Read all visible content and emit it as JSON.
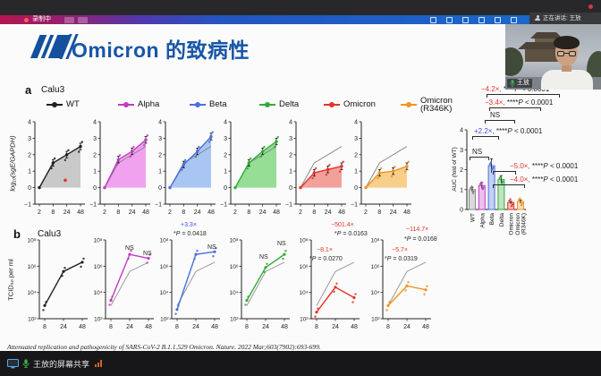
{
  "meeting": {
    "toolbar": {
      "recording_label": "录制中",
      "left_icons": [
        "record-dot",
        "pause",
        "stop"
      ],
      "right_icons": [
        "pen",
        "chat",
        "participants",
        "share-window",
        "layout",
        "leave"
      ],
      "speaking_label": "正在讲话: 王放"
    },
    "webcam": {
      "name_label": "王放"
    },
    "bottom_bar": {
      "share_label": "王放的屏幕共享"
    }
  },
  "slide": {
    "title": "Omicron 的致病性",
    "accent_color": "#1856a7",
    "panel_a_label": "a",
    "panel_b_label": "b",
    "citation": "Attenuated replication and pathogenicity of SARS-CoV-2 B.1.1.529 Omicron. Nature. 2022 Mar;603(7902):693-699."
  },
  "legend": {
    "items": [
      {
        "label": "WT",
        "color": "#231f20"
      },
      {
        "label": "Alpha",
        "color": "#c23bc2"
      },
      {
        "label": "Beta",
        "color": "#4a6fe0"
      },
      {
        "label": "Delta",
        "color": "#2fae37"
      },
      {
        "label": "Omicron",
        "color": "#e63329"
      },
      {
        "label": "Omicron (R346K)",
        "color": "#f09422"
      }
    ]
  },
  "chart_data": [
    {
      "panel": "a",
      "type": "line",
      "cell_line": "Calu3",
      "ylabel": "log₁₀(sgE/GAPDH)",
      "x": [
        2,
        8,
        24,
        48
      ],
      "ylim": [
        -1,
        4
      ],
      "yticks": [
        4,
        3,
        2,
        1,
        0,
        -1
      ],
      "wt_reference": [
        0,
        1.5,
        2.0,
        2.5
      ],
      "series": [
        {
          "name": "WT",
          "color": "#231f20",
          "fill": "#c9c9c9",
          "values": [
            0,
            1.5,
            2.0,
            2.5
          ],
          "outlier": {
            "x_frac": 0.63,
            "y": 0.45,
            "color": "#e63329"
          }
        },
        {
          "name": "Alpha",
          "color": "#c23bc2",
          "fill": "#f0a2ef",
          "values": [
            0,
            1.7,
            2.2,
            2.9
          ]
        },
        {
          "name": "Beta",
          "color": "#4a6fe0",
          "fill": "#a9c6f2",
          "values": [
            0,
            1.4,
            2.2,
            3.1
          ]
        },
        {
          "name": "Delta",
          "color": "#2fae37",
          "fill": "#96dd96",
          "values": [
            0,
            1.5,
            2.2,
            2.8
          ]
        },
        {
          "name": "Omicron",
          "color": "#e63329",
          "fill": "#f2a09a",
          "values": [
            0,
            0.9,
            1.1,
            1.3
          ]
        },
        {
          "name": "Omicron (R346K)",
          "color": "#f09422",
          "fill": "#f8cf8a",
          "values": [
            0,
            0.9,
            1.0,
            1.3
          ]
        }
      ]
    },
    {
      "panel": "b",
      "type": "line",
      "yscale": "log10",
      "cell_line": "Calu3",
      "ylabel": "TCID₅₀ per ml",
      "x": [
        8,
        24,
        48
      ],
      "ytick_labels": [
        "10⁸",
        "10⁶",
        "10⁴",
        "10²"
      ],
      "ytick_log10": [
        8,
        6,
        4,
        2
      ],
      "ylim_log10": [
        2,
        8
      ],
      "wt_reference_log10": [
        3.0,
        5.6,
        6.3
      ],
      "series": [
        {
          "name": "WT",
          "color": "#231f20",
          "values_log10": [
            3.0,
            5.6,
            6.3
          ],
          "annotations": []
        },
        {
          "name": "Alpha",
          "color": "#c23bc2",
          "values_log10": [
            3.4,
            6.9,
            6.6
          ],
          "annotations": [
            {
              "text": "NS",
              "color": "#231f20",
              "x": 40,
              "y": 37
            },
            {
              "text": "NS",
              "color": "#231f20",
              "x": 60,
              "y": 43
            }
          ]
        },
        {
          "name": "Beta",
          "color": "#4a6fe0",
          "values_log10": [
            2.7,
            6.9,
            7.1
          ],
          "annotations": [
            {
              "text": "+3.3×",
              "color": "#3a50e0",
              "x": 28,
              "y": 11
            },
            {
              "text": "*P = 0.0418",
              "color": "#231f20",
              "x": 20,
              "y": 21
            },
            {
              "text": "NS",
              "color": "#231f20",
              "x": 58,
              "y": 36
            }
          ]
        },
        {
          "name": "Delta",
          "color": "#2fae37",
          "values_log10": [
            3.4,
            5.9,
            6.9
          ],
          "annotations": [
            {
              "text": "NS",
              "color": "#231f20",
              "x": 38,
              "y": 47
            },
            {
              "text": "NS",
              "color": "#231f20",
              "x": 58,
              "y": 32
            }
          ]
        },
        {
          "name": "Omicron",
          "color": "#e63329",
          "values_log10": [
            2.5,
            4.4,
            3.6
          ],
          "annotations": [
            {
              "text": "−501.4×",
              "color": "#e63329",
              "x": 40,
              "y": 11
            },
            {
              "text": "*P = 0.0163",
              "color": "#231f20",
              "x": 44,
              "y": 21
            },
            {
              "text": "−8.1×",
              "color": "#e63329",
              "x": 24,
              "y": 39
            },
            {
              "text": "*P = 0.0270",
              "color": "#231f20",
              "x": 16,
              "y": 49
            }
          ]
        },
        {
          "name": "Omicron (R346K)",
          "color": "#f09422",
          "values_log10": [
            3.0,
            4.5,
            4.2
          ],
          "annotations": [
            {
              "text": "−114.7×",
              "color": "#e63329",
              "x": 44,
              "y": 16
            },
            {
              "text": "*P = 0.0168",
              "color": "#231f20",
              "x": 42,
              "y": 27
            },
            {
              "text": "−5.7×",
              "color": "#e63329",
              "x": 28,
              "y": 39
            },
            {
              "text": "*P = 0.0319",
              "color": "#231f20",
              "x": 20,
              "y": 49
            }
          ]
        }
      ]
    },
    {
      "panel": "right",
      "type": "bar",
      "ylabel": "AUC (fold of WT)",
      "categories": [
        "WT",
        "Alpha",
        "Beta",
        "Delta",
        "Omicron",
        "Omicron (R346K)"
      ],
      "values": [
        1.0,
        1.2,
        2.2,
        1.5,
        0.35,
        0.4
      ],
      "errors": [
        0.12,
        0.15,
        0.35,
        0.2,
        0.06,
        0.08
      ],
      "colors": [
        "#8a8a8a",
        "#c23bc2",
        "#4a6fe0",
        "#2fae37",
        "#e63329",
        "#f09422"
      ],
      "ylim": [
        0,
        4
      ],
      "yticks": [
        0,
        1,
        2,
        3,
        4
      ],
      "comparisons": [
        {
          "factor": "−4.2×,",
          "factor_color": "#e63329",
          "text": "****P < 0.0001"
        },
        {
          "factor": "−3.4×,",
          "factor_color": "#e63329",
          "text": "****P < 0.0001"
        },
        {
          "factor": "NS",
          "factor_color": "#231f20",
          "text": ""
        },
        {
          "factor": "+2.2×,",
          "factor_color": "#3a50e0",
          "text": "****P < 0.0001"
        },
        {
          "factor": "NS",
          "factor_color": "#231f20",
          "text": ""
        },
        {
          "factor": "−5.0×,",
          "factor_color": "#e63329",
          "text": "****P < 0.0001"
        },
        {
          "factor": "−4.0×,",
          "factor_color": "#e63329",
          "text": "****P < 0.0001"
        }
      ]
    }
  ]
}
